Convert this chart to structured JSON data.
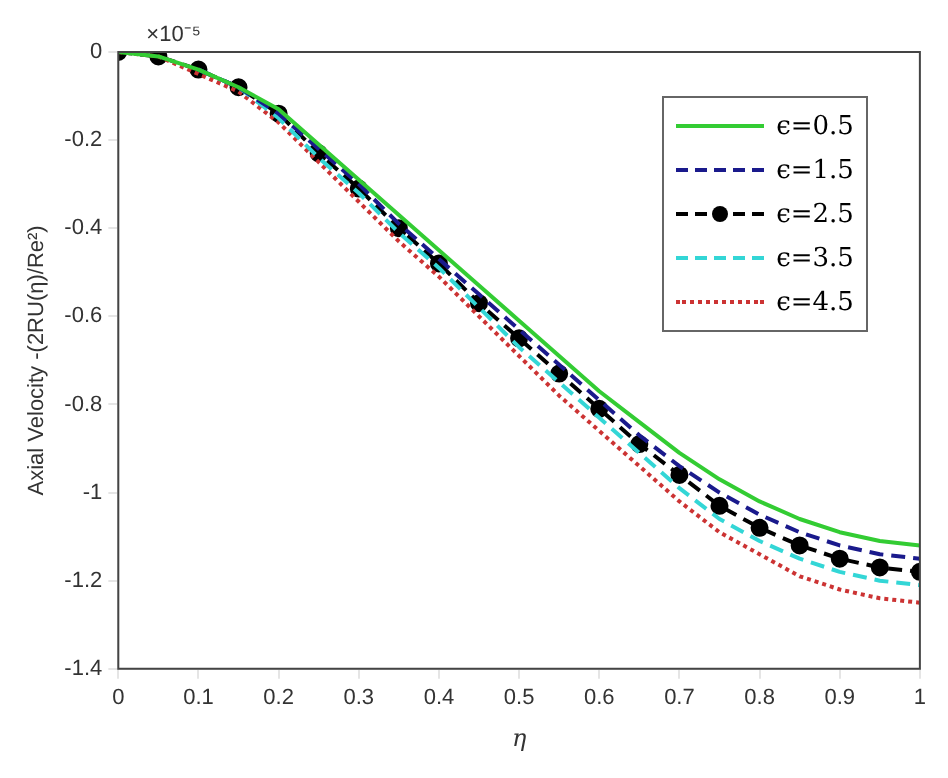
{
  "chart_data": {
    "type": "line",
    "xlabel": "η",
    "ylabel": "Axial Velocity -(2RU(η)/Re²)",
    "annotations": [
      "×10⁻⁵"
    ],
    "x": [
      0,
      0.05,
      0.1,
      0.15,
      0.2,
      0.25,
      0.3,
      0.35,
      0.4,
      0.45,
      0.5,
      0.55,
      0.6,
      0.65,
      0.7,
      0.75,
      0.8,
      0.85,
      0.9,
      0.95,
      1
    ],
    "xlim": [
      0,
      1
    ],
    "xticks": [
      0,
      0.1,
      0.2,
      0.3,
      0.4,
      0.5,
      0.6,
      0.7,
      0.8,
      0.9,
      1
    ],
    "ylim": [
      -1.4,
      0
    ],
    "yticks": [
      -1.4,
      -1.2,
      -1,
      -0.8,
      -0.6,
      -0.4,
      -0.2,
      0
    ],
    "grid": false,
    "legend": "top right",
    "series": [
      {
        "name": "ϵ=0.5",
        "color": "#33cc33",
        "line_style": "solid",
        "marker": "none",
        "values": [
          0,
          -0.01,
          -0.04,
          -0.08,
          -0.13,
          -0.21,
          -0.29,
          -0.37,
          -0.45,
          -0.53,
          -0.61,
          -0.69,
          -0.77,
          -0.84,
          -0.91,
          -0.97,
          -1.02,
          -1.06,
          -1.09,
          -1.11,
          -1.12
        ]
      },
      {
        "name": "ϵ=1.5",
        "color": "#1a1a8c",
        "line_style": "dashed",
        "marker": "none",
        "values": [
          null,
          null,
          -0.04,
          -0.08,
          -0.14,
          -0.22,
          -0.3,
          -0.39,
          -0.47,
          -0.55,
          -0.63,
          -0.71,
          -0.79,
          -0.87,
          -0.94,
          -1,
          -1.05,
          -1.09,
          -1.12,
          -1.14,
          -1.15
        ]
      },
      {
        "name": "ϵ=2.5",
        "color": "#000000",
        "line_style": "dashed",
        "marker": "circle",
        "values": [
          0,
          -0.01,
          -0.04,
          -0.08,
          -0.14,
          -0.23,
          -0.31,
          -0.4,
          -0.48,
          -0.57,
          -0.65,
          -0.73,
          -0.81,
          -0.89,
          -0.96,
          -1.03,
          -1.08,
          -1.12,
          -1.15,
          -1.17,
          -1.18
        ]
      },
      {
        "name": "ϵ=3.5",
        "color": "#33d6d6",
        "line_style": "dashed",
        "marker": "none",
        "values": [
          null,
          null,
          -0.04,
          -0.08,
          -0.15,
          -0.24,
          -0.32,
          -0.41,
          -0.49,
          -0.58,
          -0.67,
          -0.75,
          -0.83,
          -0.91,
          -0.99,
          -1.06,
          -1.11,
          -1.15,
          -1.18,
          -1.2,
          -1.21
        ]
      },
      {
        "name": "ϵ=4.5",
        "color": "#cc3333",
        "line_style": "dotted",
        "marker": "none",
        "values": [
          0,
          -0.01,
          -0.05,
          -0.09,
          -0.16,
          -0.25,
          -0.34,
          -0.43,
          -0.51,
          -0.6,
          -0.69,
          -0.78,
          -0.86,
          -0.94,
          -1.02,
          -1.09,
          -1.14,
          -1.19,
          -1.22,
          -1.24,
          -1.25
        ]
      }
    ]
  }
}
